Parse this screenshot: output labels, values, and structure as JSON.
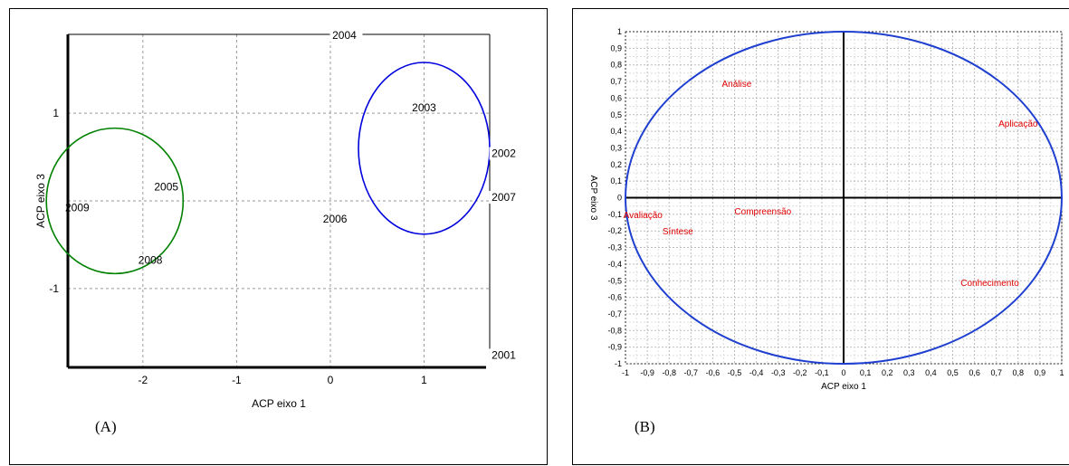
{
  "chart_data": [
    {
      "type": "scatter",
      "panel_label": "(A)",
      "xlabel": "ACP eixo 1",
      "ylabel": "ACP eixo 3",
      "xlim": [
        -2.8,
        1.7
      ],
      "ylim": [
        -1.9,
        1.9
      ],
      "xticks": [
        -2,
        -1,
        0,
        1
      ],
      "yticks": [
        1,
        -1
      ],
      "grid": true,
      "points": [
        {
          "label": "2004",
          "x": 0.15,
          "y": 1.85
        },
        {
          "label": "2003",
          "x": 1.0,
          "y": 1.02
        },
        {
          "label": "2002",
          "x": 1.85,
          "y": 0.5
        },
        {
          "label": "2007",
          "x": 1.85,
          "y": 0.0
        },
        {
          "label": "2005",
          "x": -1.75,
          "y": 0.12
        },
        {
          "label": "2009",
          "x": -2.7,
          "y": -0.12
        },
        {
          "label": "2006",
          "x": 0.05,
          "y": -0.25
        },
        {
          "label": "2008",
          "x": -1.92,
          "y": -0.72
        },
        {
          "label": "2001",
          "x": 1.85,
          "y": -1.8
        }
      ],
      "groups": [
        {
          "color": "#008000",
          "cx": -2.3,
          "cy": 0.0,
          "rx": 0.73,
          "ry": 0.83
        },
        {
          "color": "#0000dd",
          "cx": 1.0,
          "cy": 0.6,
          "rx": 0.7,
          "ry": 0.98
        }
      ]
    },
    {
      "type": "scatter",
      "panel_label": "(B)",
      "xlabel": "ACP eixo 1",
      "ylabel": "ACP eixo 3",
      "xlim": [
        -1,
        1
      ],
      "ylim": [
        -1,
        1
      ],
      "xtick_labels": [
        "-1",
        "-0,9",
        "-0,8",
        "-0,7",
        "-0,6",
        "-0,5",
        "-0,4",
        "-0,3",
        "-0,2",
        "-0,1",
        "0",
        "0,1",
        "0,2",
        "0,3",
        "0,4",
        "0,5",
        "0,6",
        "0,7",
        "0,8",
        "0,9",
        "1"
      ],
      "ytick_labels": [
        "1",
        "0,9",
        "0,8",
        "0,7",
        "0,6",
        "0,5",
        "0,4",
        "0,3",
        "0,2",
        "0,1",
        "0",
        "-0,1",
        "-0,2",
        "-0,3",
        "-0,4",
        "-0,5",
        "-0,6",
        "-0,7",
        "-0,8",
        "-0,9",
        "-1"
      ],
      "grid": true,
      "circle_color": "#1e3fd0",
      "label_color": "#e00000",
      "points": [
        {
          "label": "Análise",
          "x": -0.49,
          "y": 0.69
        },
        {
          "label": "Aplicação",
          "x": 0.8,
          "y": 0.45
        },
        {
          "label": "Compreensão",
          "x": -0.37,
          "y": -0.08
        },
        {
          "label": "Avaliação",
          "x": -0.92,
          "y": -0.1
        },
        {
          "label": "Síntese",
          "x": -0.76,
          "y": -0.2
        },
        {
          "label": "Conhecimento",
          "x": 0.67,
          "y": -0.51
        }
      ]
    }
  ]
}
